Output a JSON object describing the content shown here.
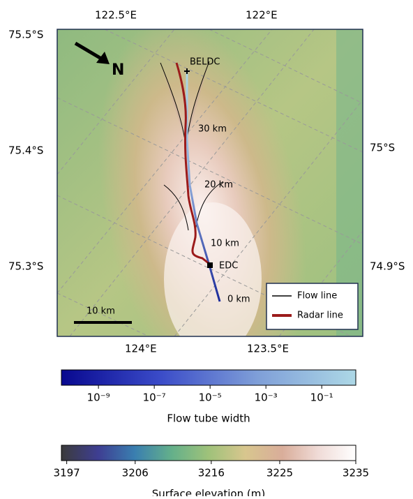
{
  "map": {
    "lon_labels_top": [
      "122.5°E",
      "122°E"
    ],
    "lon_labels_bottom": [
      "124°E",
      "123.5°E"
    ],
    "lat_labels_left": [
      "75.5°S",
      "75.4°S",
      "75.3°S"
    ],
    "lat_labels_right": [
      "75°S",
      "74.9°S"
    ],
    "north": "N",
    "sites": [
      "BELDC",
      "EDC"
    ],
    "distance_labels": [
      "30 km",
      "20 km",
      "10 km",
      "0 km"
    ],
    "scale_bar": "10 km",
    "legend": [
      {
        "name": "Flow line",
        "color": "#000000"
      },
      {
        "name": "Radar line",
        "color": "#9b1b1b"
      }
    ]
  },
  "colorbars": [
    {
      "label": "Flow tube width",
      "log": true,
      "lim": [
        4.7e-11,
        1.66
      ],
      "colors": [
        "#08088f",
        "#3a4bc8",
        "#7f9fd8",
        "#add8e6"
      ],
      "ticks": [
        {
          "value": 1e-09,
          "label": "10⁻⁹"
        },
        {
          "value": 1e-07,
          "label": "10⁻⁷"
        },
        {
          "value": 1e-05,
          "label": "10⁻⁵"
        },
        {
          "value": 0.001,
          "label": "10⁻³"
        },
        {
          "value": 0.1,
          "label": "10⁻¹"
        }
      ]
    },
    {
      "label": "Surface elevation (m)",
      "log": false,
      "lim": [
        3196.3,
        3235
      ],
      "colors": [
        "#3b3b3b",
        "#3e3e92",
        "#3a7fb0",
        "#64b08a",
        "#9fc27a",
        "#d8c68e",
        "#d9ad9a",
        "#f0dcd8",
        "#ffffff"
      ],
      "ticks": [
        3197,
        3206,
        3216,
        3225,
        3235
      ]
    }
  ]
}
